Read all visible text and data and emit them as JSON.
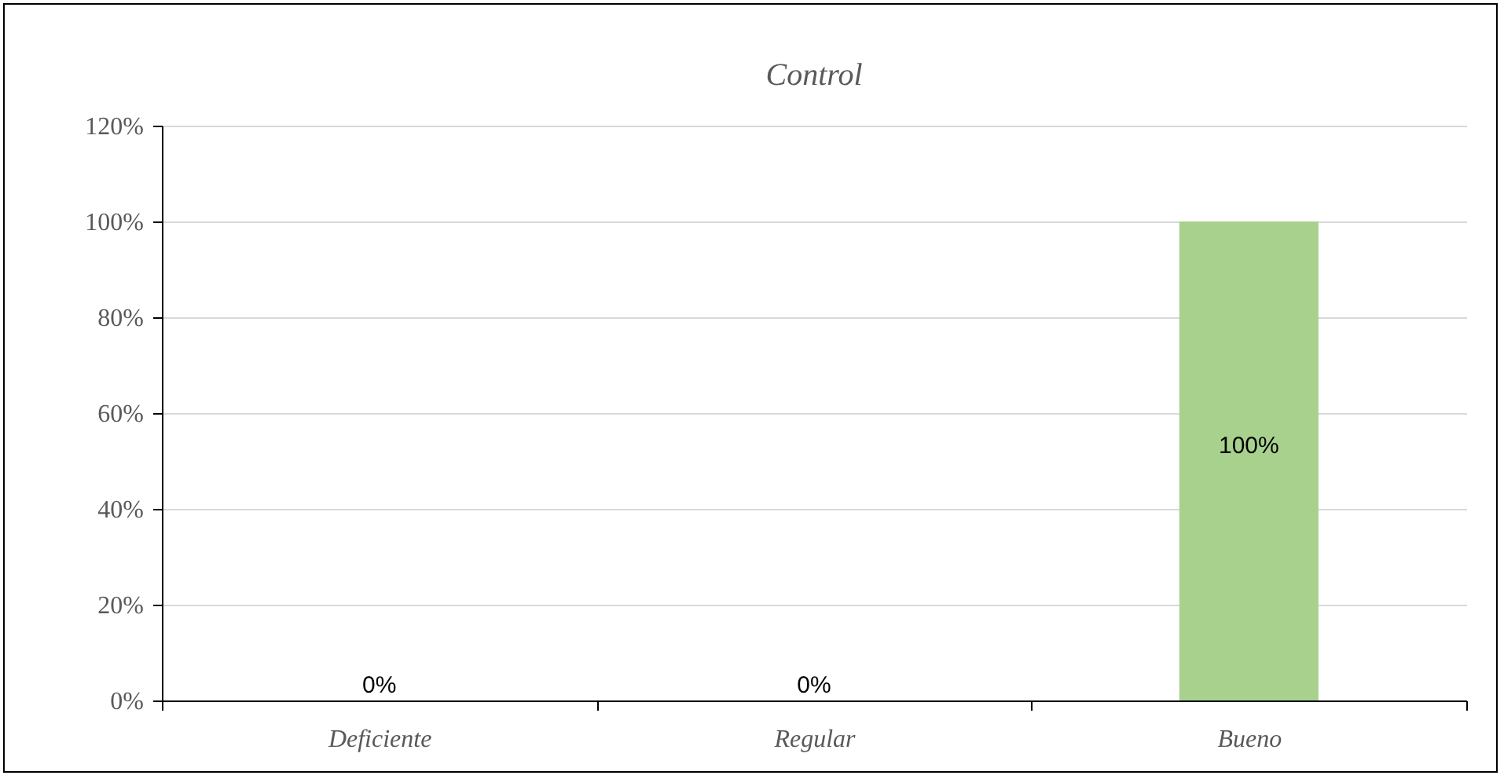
{
  "chart_data": {
    "type": "bar",
    "title": "Control",
    "categories": [
      "Deficiente",
      "Regular",
      "Bueno"
    ],
    "values": [
      0,
      0,
      100
    ],
    "color": "#a9d18e",
    "value_labels": [
      "0%",
      "0%",
      "100%"
    ],
    "ylim": [
      0,
      120
    ],
    "yticks": [
      {
        "value": 0,
        "label": "0%"
      },
      {
        "value": 20,
        "label": "20%"
      },
      {
        "value": 40,
        "label": "40%"
      },
      {
        "value": 60,
        "label": "60%"
      },
      {
        "value": 80,
        "label": "80%"
      },
      {
        "value": 100,
        "label": "100%"
      },
      {
        "value": 120,
        "label": "120%"
      }
    ],
    "grid": "y"
  }
}
